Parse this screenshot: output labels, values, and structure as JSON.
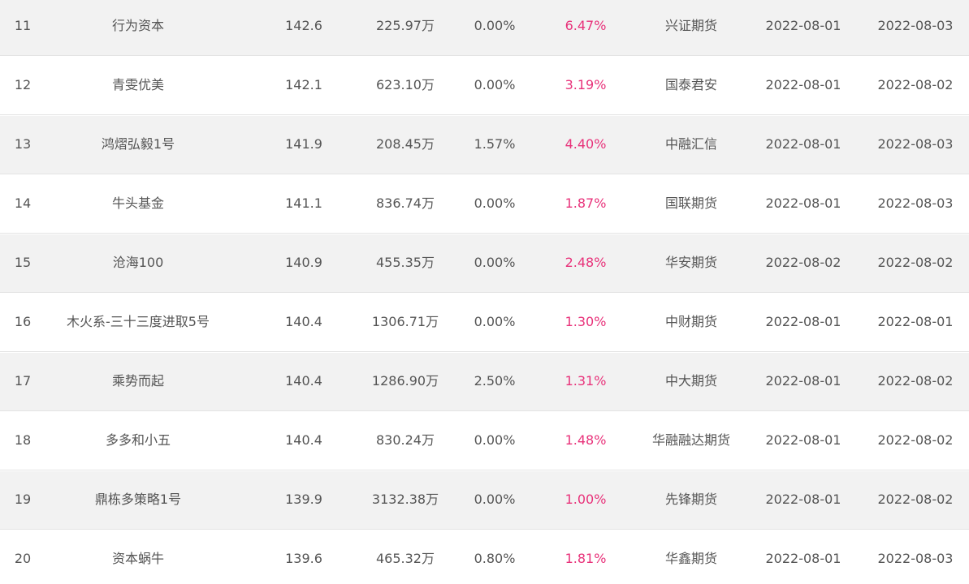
{
  "rows": [
    {
      "rank": "11",
      "name": "行为资本",
      "score": "142.6",
      "scale": "225.97万",
      "drawdown": "0.00%",
      "return": "6.47%",
      "broker": "兴证期货",
      "date1": "2022-08-01",
      "date2": "2022-08-03"
    },
    {
      "rank": "12",
      "name": "青雯优美",
      "score": "142.1",
      "scale": "623.10万",
      "drawdown": "0.00%",
      "return": "3.19%",
      "broker": "国泰君安",
      "date1": "2022-08-01",
      "date2": "2022-08-02"
    },
    {
      "rank": "13",
      "name": "鸿熠弘毅1号",
      "score": "141.9",
      "scale": "208.45万",
      "drawdown": "1.57%",
      "return": "4.40%",
      "broker": "中融汇信",
      "date1": "2022-08-01",
      "date2": "2022-08-03"
    },
    {
      "rank": "14",
      "name": "牛头基金",
      "score": "141.1",
      "scale": "836.74万",
      "drawdown": "0.00%",
      "return": "1.87%",
      "broker": "国联期货",
      "date1": "2022-08-01",
      "date2": "2022-08-03"
    },
    {
      "rank": "15",
      "name": "沧海100",
      "score": "140.9",
      "scale": "455.35万",
      "drawdown": "0.00%",
      "return": "2.48%",
      "broker": "华安期货",
      "date1": "2022-08-02",
      "date2": "2022-08-02"
    },
    {
      "rank": "16",
      "name": "木火系-三十三度进取5号",
      "score": "140.4",
      "scale": "1306.71万",
      "drawdown": "0.00%",
      "return": "1.30%",
      "broker": "中财期货",
      "date1": "2022-08-01",
      "date2": "2022-08-01"
    },
    {
      "rank": "17",
      "name": "乘势而起",
      "score": "140.4",
      "scale": "1286.90万",
      "drawdown": "2.50%",
      "return": "1.31%",
      "broker": "中大期货",
      "date1": "2022-08-01",
      "date2": "2022-08-02"
    },
    {
      "rank": "18",
      "name": "多多和小五",
      "score": "140.4",
      "scale": "830.24万",
      "drawdown": "0.00%",
      "return": "1.48%",
      "broker": "华融融达期货",
      "date1": "2022-08-01",
      "date2": "2022-08-02"
    },
    {
      "rank": "19",
      "name": "鼎栋多策略1号",
      "score": "139.9",
      "scale": "3132.38万",
      "drawdown": "0.00%",
      "return": "1.00%",
      "broker": "先锋期货",
      "date1": "2022-08-01",
      "date2": "2022-08-02"
    },
    {
      "rank": "20",
      "name": "资本蜗牛",
      "score": "139.6",
      "scale": "465.32万",
      "drawdown": "0.80%",
      "return": "1.81%",
      "broker": "华鑫期货",
      "date1": "2022-08-01",
      "date2": "2022-08-03"
    }
  ],
  "colors": {
    "return_text": "#e8327a",
    "row_shaded": "#f2f2f2",
    "text": "#555555"
  }
}
